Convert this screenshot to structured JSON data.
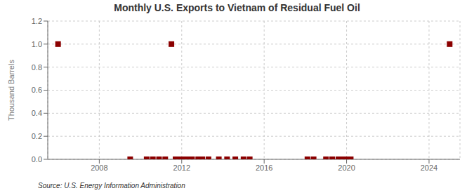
{
  "chart_data": {
    "type": "scatter",
    "title": "Monthly U.S. Exports to Vietnam of Residual Fuel Oil",
    "ylabel": "Thousand Barrels",
    "annotations": [
      "Source: U.S. Energy Information Administration"
    ],
    "x": [
      2006.0,
      2009.5,
      2010.3,
      2010.6,
      2010.9,
      2011.2,
      2011.5,
      2011.7,
      2011.9,
      2012.1,
      2012.3,
      2012.5,
      2012.8,
      2013.0,
      2013.3,
      2013.8,
      2014.2,
      2014.6,
      2015.0,
      2015.3,
      2018.1,
      2018.4,
      2019.0,
      2019.3,
      2019.6,
      2019.8,
      2020.0,
      2020.2,
      2025.0
    ],
    "values": [
      1.0,
      0.0,
      0.0,
      0.0,
      0.0,
      0.0,
      1.0,
      0.0,
      0.0,
      0.0,
      0.0,
      0.0,
      0.0,
      0.0,
      0.0,
      0.0,
      0.0,
      0.0,
      0.0,
      0.0,
      0.0,
      0.0,
      0.0,
      0.0,
      0.0,
      0.0,
      0.0,
      0.0,
      1.0
    ],
    "color": "#8b0000",
    "marker": "square",
    "xlim": [
      2005.5,
      2025.5
    ],
    "xticks": [
      2008,
      2012,
      2016,
      2020,
      2024
    ],
    "ylim": [
      0,
      1.2
    ],
    "yticks": [
      {
        "value": 0.0,
        "label": "0.0"
      },
      0.2,
      0.4,
      0.6,
      0.8,
      {
        "value": 1.0,
        "label": "1.0"
      },
      1.2
    ],
    "grid": true
  }
}
